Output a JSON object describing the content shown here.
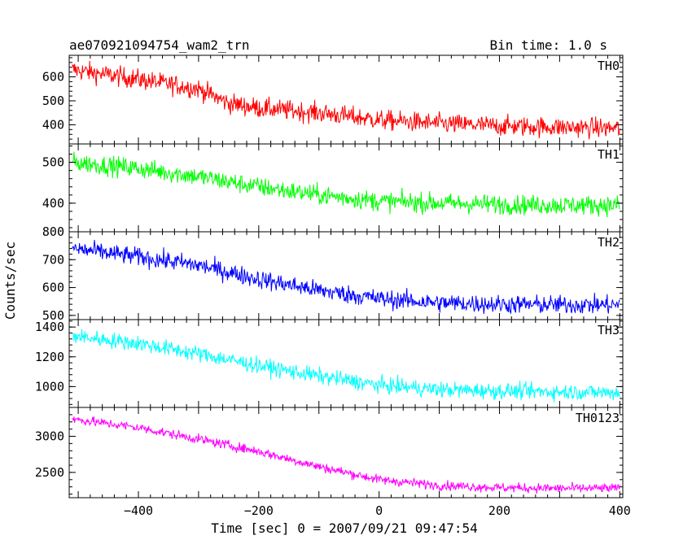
{
  "header": {
    "title": "ae070921094754_wam2_trn",
    "bin_time": "Bin time: 1.0 s"
  },
  "chart_data": {
    "type": "line",
    "x_label": "Time [sec] 0 = 2007/09/21 09:47:54",
    "y_label": "Counts/sec",
    "x_range": [
      -515,
      405
    ],
    "x_ticks": [
      -400,
      -200,
      0,
      200,
      400
    ],
    "x_tick_labels": [
      "−400",
      "−200",
      "0",
      "200",
      "400"
    ],
    "panels": [
      {
        "name": "TH0",
        "color": "#ff0000",
        "ylim": [
          320,
          690
        ],
        "yticks": [
          400,
          500,
          600
        ],
        "ytick_labels": [
          "400",
          "500",
          "600"
        ],
        "trend_x": [
          -510,
          -400,
          -300,
          -250,
          -200,
          -100,
          0,
          100,
          200,
          300,
          400
        ],
        "trend_y": [
          630,
          590,
          550,
          490,
          470,
          450,
          420,
          405,
          395,
          390,
          385
        ],
        "noise": 35
      },
      {
        "name": "TH1",
        "color": "#00ff00",
        "ylim": [
          330,
          545
        ],
        "yticks": [
          400,
          500
        ],
        "ytick_labels": [
          "400",
          "500"
        ],
        "trend_x": [
          -510,
          -400,
          -300,
          -200,
          -100,
          0,
          100,
          200,
          300,
          400
        ],
        "trend_y": [
          500,
          485,
          465,
          440,
          420,
          405,
          400,
          397,
          395,
          395
        ],
        "noise": 20
      },
      {
        "name": "TH2",
        "color": "#0000ff",
        "ylim": [
          485,
          800
        ],
        "yticks": [
          500,
          600,
          700,
          800
        ],
        "ytick_labels": [
          "500",
          "600",
          "700",
          "800"
        ],
        "trend_x": [
          -510,
          -400,
          -300,
          -200,
          -100,
          0,
          100,
          200,
          300,
          400
        ],
        "trend_y": [
          740,
          710,
          680,
          630,
          590,
          560,
          545,
          540,
          538,
          538
        ],
        "noise": 28
      },
      {
        "name": "TH3",
        "color": "#00ffff",
        "ylim": [
          860,
          1450
        ],
        "yticks": [
          1000,
          1200,
          1400
        ],
        "ytick_labels": [
          "1000",
          "1200",
          "1400"
        ],
        "trend_x": [
          -510,
          -400,
          -300,
          -200,
          -100,
          0,
          100,
          200,
          300,
          400
        ],
        "trend_y": [
          1340,
          1290,
          1220,
          1140,
          1070,
          1010,
          980,
          970,
          965,
          960
        ],
        "noise": 45
      },
      {
        "name": "TH0123",
        "color": "#ff00ff",
        "ylim": [
          2150,
          3400
        ],
        "yticks": [
          2500,
          3000
        ],
        "ytick_labels": [
          "2500",
          "3000"
        ],
        "trend_x": [
          -510,
          -400,
          -300,
          -200,
          -100,
          0,
          100,
          200,
          300,
          400
        ],
        "trend_y": [
          3240,
          3120,
          2960,
          2790,
          2580,
          2400,
          2320,
          2290,
          2280,
          2280
        ],
        "noise": 55
      }
    ]
  }
}
